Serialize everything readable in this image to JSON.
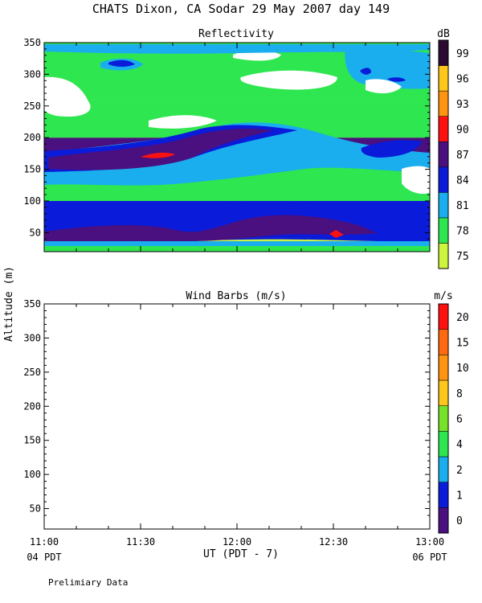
{
  "title": "CHATS Dixon, CA  Sodar  29 May 2007  day 149",
  "footer_note": "Prelimiary Data",
  "shared_y_label": "Altitude (m)",
  "x_axis": {
    "label": "UT  (PDT - 7)",
    "tick_labels": [
      "11:00",
      "11:30",
      "12:00",
      "12:30",
      "13:00"
    ],
    "start_local_label": "04 PDT",
    "end_local_label": "06 PDT"
  },
  "colors": {
    "reflectivity": [
      "#ccf53b",
      "#2ee64f",
      "#1aaeee",
      "#0a1bd9",
      "#4a1080",
      "#ff1010",
      "#ff9410",
      "#ffc719",
      "#2a0a30"
    ],
    "wind": [
      "#4a1080",
      "#0a1bd9",
      "#1aaeee",
      "#2ee64f",
      "#77e22a",
      "#ffc719",
      "#ff9410",
      "#ff6a10",
      "#ff1010"
    ]
  },
  "chart_data": [
    {
      "type": "heatmap",
      "title": "Reflectivity",
      "colorbar_unit": "dB",
      "colorbar_labels": [
        "75",
        "78",
        "81",
        "84",
        "87",
        "90",
        "93",
        "96",
        "99"
      ],
      "x_range": [
        "11:00",
        "13:00"
      ],
      "ylim": [
        20,
        350
      ],
      "y_ticks": [
        50,
        100,
        150,
        200,
        250,
        300,
        350
      ],
      "bands_dB": [
        {
          "altitude_range": [
            40,
            70
          ],
          "level_dB": 87
        },
        {
          "altitude_range": [
            70,
            100
          ],
          "level_dB": 84
        },
        {
          "altitude_range": [
            100,
            160
          ],
          "level_dB": 78
        },
        {
          "altitude_range": [
            160,
            200
          ],
          "level_dB": 87
        },
        {
          "altitude_range": [
            200,
            260
          ],
          "level_dB": 78
        },
        {
          "altitude_range": [
            260,
            350
          ],
          "level_dB": 78
        }
      ]
    },
    {
      "type": "scatter",
      "title": "Wind Barbs (m/s)",
      "colorbar_unit": "m/s",
      "colorbar_labels": [
        "0",
        "1",
        "2",
        "4",
        "6",
        "8",
        "10",
        "15",
        "20"
      ],
      "x_range": [
        "11:00",
        "13:00"
      ],
      "ylim": [
        20,
        350
      ],
      "y_ticks": [
        50,
        100,
        150,
        200,
        250,
        300,
        350
      ],
      "points": []
    }
  ]
}
